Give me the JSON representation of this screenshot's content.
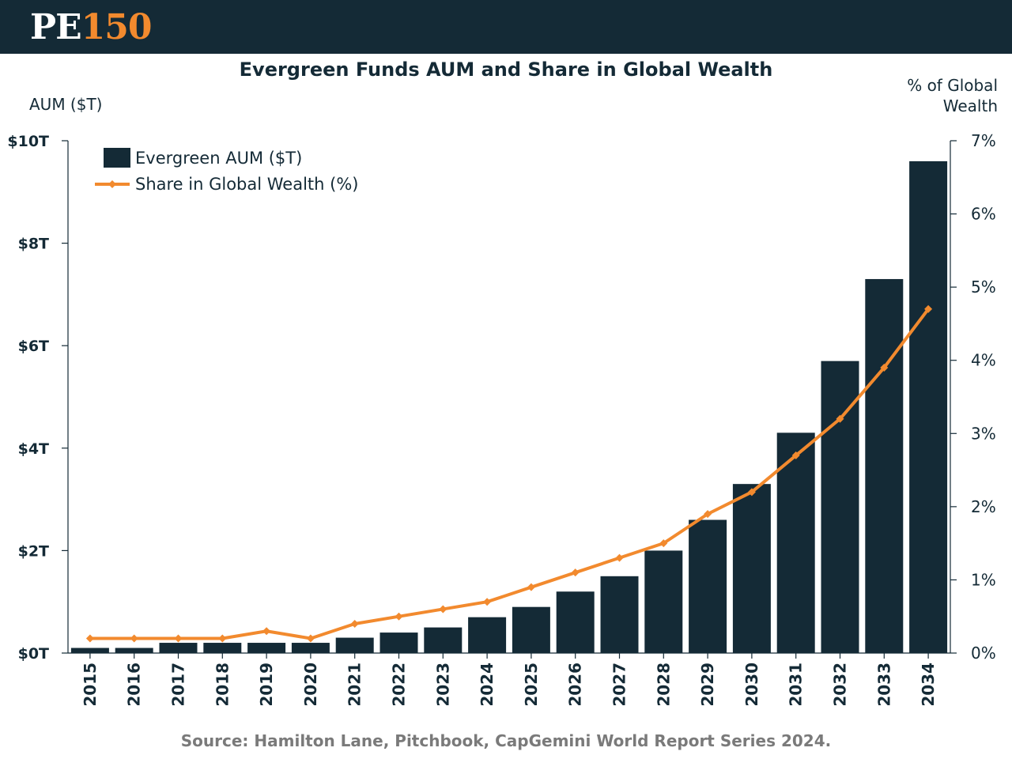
{
  "header": {
    "logo_pe": "PE",
    "logo_num": "150"
  },
  "footer": {
    "source": "Source: Hamilton Lane, Pitchbook, CapGemini World Report Series 2024."
  },
  "colors": {
    "header_bg": "#142a36",
    "bar": "#142a36",
    "line": "#f28a2e",
    "logo_accent": "#f28a2e",
    "source_text": "#7a7a7a"
  },
  "chart_data": {
    "type": "bar",
    "title": "Evergreen Funds AUM and Share in Global Wealth",
    "ylabel": "AUM ($T)",
    "y2label": "% of Global Wealth",
    "ylim": [
      0,
      10
    ],
    "y2lim": [
      0,
      7
    ],
    "yticks": [
      "$0T",
      "$2T",
      "$4T",
      "$6T",
      "$8T",
      "$10T"
    ],
    "y2ticks": [
      "0%",
      "1%",
      "2%",
      "3%",
      "4%",
      "5%",
      "6%",
      "7%"
    ],
    "categories": [
      "2015",
      "2016",
      "2017",
      "2018",
      "2019",
      "2020",
      "2021",
      "2022",
      "2023",
      "2024",
      "2025",
      "2026",
      "2027",
      "2028",
      "2029",
      "2030",
      "2031",
      "2032",
      "2033",
      "2034"
    ],
    "legend_placement": "top-left",
    "grid": false,
    "series": [
      {
        "name": "Evergreen AUM ($T)",
        "type": "bar",
        "axis": "left",
        "values": [
          0.1,
          0.1,
          0.2,
          0.2,
          0.2,
          0.2,
          0.3,
          0.4,
          0.5,
          0.7,
          0.9,
          1.2,
          1.5,
          2.0,
          2.6,
          3.3,
          4.3,
          5.7,
          7.3,
          9.6
        ]
      },
      {
        "name": "Share in Global Wealth (%)",
        "type": "line",
        "axis": "right",
        "values": [
          0.2,
          0.2,
          0.2,
          0.2,
          0.3,
          0.2,
          0.4,
          0.5,
          0.6,
          0.7,
          0.9,
          1.1,
          1.3,
          1.5,
          1.9,
          2.2,
          2.7,
          3.2,
          3.9,
          4.7
        ]
      }
    ]
  }
}
